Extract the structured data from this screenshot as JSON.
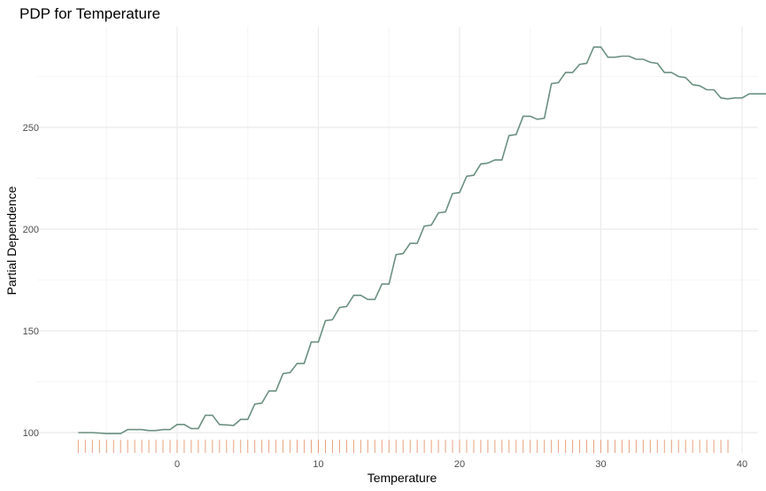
{
  "chart_data": {
    "type": "line",
    "title": "PDP for Temperature",
    "xlabel": "Temperature",
    "ylabel": "Partial Dependence",
    "xlim": [
      -7.5,
      40.5
    ],
    "ylim": [
      93,
      300
    ],
    "x_ticks": [
      0,
      10,
      20,
      30,
      40
    ],
    "y_ticks": [
      100,
      150,
      200,
      250
    ],
    "grid": true,
    "colors": {
      "line": "#6b9080",
      "rug": "#e8a07f",
      "grid_major": "#ebebeb",
      "grid_minor": "#f5f5f5"
    },
    "series": [
      {
        "name": "Partial Dependence",
        "points": [
          [
            -7.0,
            100
          ],
          [
            -6.0,
            100
          ],
          [
            -5.0,
            99.5
          ],
          [
            -4.0,
            99.5
          ],
          [
            -3.5,
            101.5
          ],
          [
            -2.5,
            101.5
          ],
          [
            -2.0,
            101
          ],
          [
            -1.5,
            101
          ],
          [
            -1.0,
            101.5
          ],
          [
            -0.5,
            101.5
          ],
          [
            0.0,
            104
          ],
          [
            0.5,
            104
          ],
          [
            1.0,
            102
          ],
          [
            1.5,
            102
          ],
          [
            2.0,
            108.5
          ],
          [
            2.5,
            108.5
          ],
          [
            3.0,
            104
          ],
          [
            4.0,
            103.5
          ],
          [
            4.5,
            106.5
          ],
          [
            5.0,
            106.5
          ],
          [
            5.5,
            114
          ],
          [
            6.0,
            114.5
          ],
          [
            6.5,
            120.5
          ],
          [
            7.0,
            120.5
          ],
          [
            7.5,
            129
          ],
          [
            8.0,
            129.5
          ],
          [
            8.5,
            134
          ],
          [
            9.0,
            134
          ],
          [
            9.5,
            144.5
          ],
          [
            10.0,
            144.5
          ],
          [
            10.5,
            155
          ],
          [
            11.0,
            155.5
          ],
          [
            11.5,
            161.5
          ],
          [
            12.0,
            162
          ],
          [
            12.5,
            167.5
          ],
          [
            13.0,
            167.5
          ],
          [
            13.5,
            165.5
          ],
          [
            14.0,
            165.5
          ],
          [
            14.5,
            173
          ],
          [
            15.0,
            173
          ],
          [
            15.5,
            187.5
          ],
          [
            16.0,
            188
          ],
          [
            16.5,
            193
          ],
          [
            17.0,
            193
          ],
          [
            17.5,
            201.5
          ],
          [
            18.0,
            202
          ],
          [
            18.5,
            208
          ],
          [
            19.0,
            208.5
          ],
          [
            19.5,
            217.5
          ],
          [
            20.0,
            218
          ],
          [
            20.5,
            226
          ],
          [
            21.0,
            226.5
          ],
          [
            21.5,
            232
          ],
          [
            22.0,
            232.5
          ],
          [
            22.5,
            234
          ],
          [
            23.0,
            234
          ],
          [
            23.5,
            246
          ],
          [
            24.0,
            246.5
          ],
          [
            24.5,
            255.5
          ],
          [
            25.0,
            255.5
          ],
          [
            25.5,
            254
          ],
          [
            26.0,
            254.5
          ],
          [
            26.5,
            271.5
          ],
          [
            27.0,
            272
          ],
          [
            27.5,
            277
          ],
          [
            28.0,
            277
          ],
          [
            28.5,
            281
          ],
          [
            29.0,
            281.5
          ],
          [
            29.5,
            289.5
          ],
          [
            30.0,
            289.5
          ],
          [
            30.5,
            284.5
          ],
          [
            31.0,
            284.5
          ],
          [
            31.5,
            285
          ],
          [
            32.0,
            285
          ],
          [
            32.5,
            283.5
          ],
          [
            33.0,
            283.5
          ],
          [
            33.5,
            282
          ],
          [
            34.0,
            281.5
          ],
          [
            34.5,
            277
          ],
          [
            35.0,
            277
          ],
          [
            35.5,
            275
          ],
          [
            36.0,
            274.5
          ],
          [
            36.5,
            271
          ],
          [
            37.0,
            270.5
          ],
          [
            37.5,
            268.5
          ],
          [
            38.0,
            268.5
          ],
          [
            38.5,
            264.5
          ],
          [
            39.0,
            264
          ],
          [
            39.5,
            264.5
          ],
          [
            40.0,
            264.5
          ],
          [
            40.5,
            266.5
          ],
          [
            41.0,
            266.5
          ],
          [
            42.0,
            266.5
          ]
        ]
      }
    ],
    "rug": {
      "from": -7,
      "to": 39,
      "step": 0.5
    }
  }
}
